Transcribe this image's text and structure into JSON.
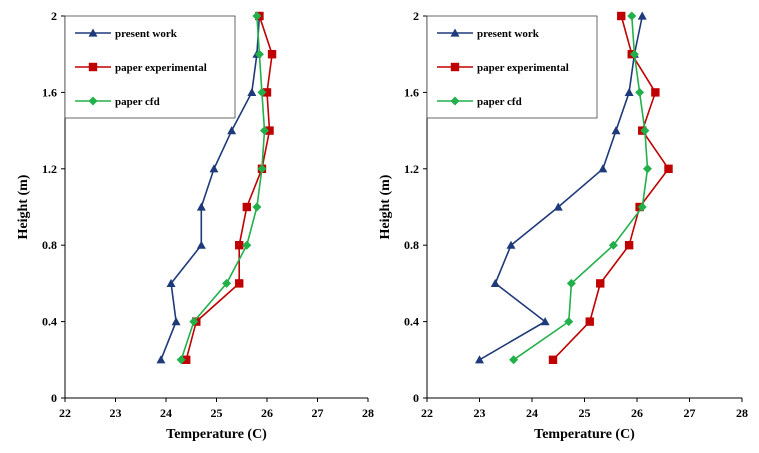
{
  "chart_data": [
    {
      "type": "line",
      "title": "",
      "xlabel": "Temperature (C)",
      "ylabel": "Height (m)",
      "xlim": [
        22,
        28
      ],
      "ylim": [
        0,
        2
      ],
      "xticks": [
        "22",
        "23",
        "24",
        "25",
        "26",
        "27",
        "28"
      ],
      "yticks": [
        "0",
        "0.4",
        "0.8",
        "1.2",
        "1.6",
        "2"
      ],
      "grid": false,
      "legend_position": "top-left",
      "series": [
        {
          "name": "present work",
          "color": "#1f3a7a",
          "marker": "triangle",
          "points": [
            [
              23.9,
              0.2
            ],
            [
              24.2,
              0.4
            ],
            [
              24.1,
              0.6
            ],
            [
              24.7,
              0.8
            ],
            [
              24.7,
              1.0
            ],
            [
              24.95,
              1.2
            ],
            [
              25.3,
              1.4
            ],
            [
              25.7,
              1.6
            ],
            [
              25.8,
              1.8
            ],
            [
              25.85,
              2.0
            ]
          ]
        },
        {
          "name": "paper experimental",
          "color": "#c00000",
          "marker": "square",
          "points": [
            [
              24.4,
              0.2
            ],
            [
              24.6,
              0.4
            ],
            [
              25.45,
              0.6
            ],
            [
              25.45,
              0.8
            ],
            [
              25.6,
              1.0
            ],
            [
              25.9,
              1.2
            ],
            [
              26.05,
              1.4
            ],
            [
              26.0,
              1.6
            ],
            [
              26.1,
              1.8
            ],
            [
              25.85,
              2.0
            ]
          ]
        },
        {
          "name": "paper cfd",
          "color": "#22b04b",
          "marker": "diamond",
          "points": [
            [
              24.3,
              0.2
            ],
            [
              24.55,
              0.4
            ],
            [
              25.2,
              0.6
            ],
            [
              25.6,
              0.8
            ],
            [
              25.8,
              1.0
            ],
            [
              25.9,
              1.2
            ],
            [
              25.95,
              1.4
            ],
            [
              25.9,
              1.6
            ],
            [
              25.85,
              1.8
            ],
            [
              25.8,
              2.0
            ]
          ]
        }
      ]
    },
    {
      "type": "line",
      "title": "",
      "xlabel": "Temperature (C)",
      "ylabel": "Height (m)",
      "xlim": [
        22,
        28
      ],
      "ylim": [
        0,
        2
      ],
      "xticks": [
        "22",
        "23",
        "24",
        "25",
        "26",
        "27",
        "28"
      ],
      "yticks": [
        "0",
        "0.4",
        "0.8",
        "1.2",
        "1.6",
        "2"
      ],
      "grid": false,
      "legend_position": "top-left",
      "series": [
        {
          "name": "present work",
          "color": "#1f3a7a",
          "marker": "triangle",
          "points": [
            [
              23.0,
              0.2
            ],
            [
              24.25,
              0.4
            ],
            [
              23.3,
              0.6
            ],
            [
              23.6,
              0.8
            ],
            [
              24.5,
              1.0
            ],
            [
              25.35,
              1.2
            ],
            [
              25.6,
              1.4
            ],
            [
              25.85,
              1.6
            ],
            [
              25.95,
              1.8
            ],
            [
              26.1,
              2.0
            ]
          ]
        },
        {
          "name": "paper experimental",
          "color": "#c00000",
          "marker": "square",
          "points": [
            [
              24.4,
              0.2
            ],
            [
              25.1,
              0.4
            ],
            [
              25.3,
              0.6
            ],
            [
              25.85,
              0.8
            ],
            [
              26.05,
              1.0
            ],
            [
              26.6,
              1.2
            ],
            [
              26.1,
              1.4
            ],
            [
              26.35,
              1.6
            ],
            [
              25.9,
              1.8
            ],
            [
              25.7,
              2.0
            ]
          ]
        },
        {
          "name": "paper cfd",
          "color": "#22b04b",
          "marker": "diamond",
          "points": [
            [
              23.65,
              0.2
            ],
            [
              24.7,
              0.4
            ],
            [
              24.75,
              0.6
            ],
            [
              25.55,
              0.8
            ],
            [
              26.1,
              1.0
            ],
            [
              26.2,
              1.2
            ],
            [
              26.15,
              1.4
            ],
            [
              26.05,
              1.6
            ],
            [
              25.95,
              1.8
            ],
            [
              25.9,
              2.0
            ]
          ]
        }
      ]
    }
  ]
}
